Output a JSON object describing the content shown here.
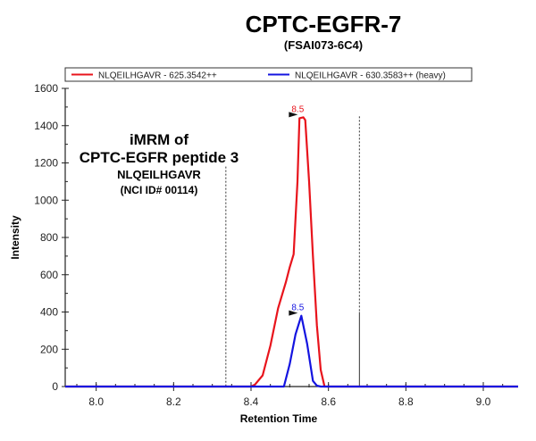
{
  "chart_data": {
    "type": "line",
    "title": "CPTC-EGFR-7",
    "subtitle": "(FSAI073-6C4)",
    "xlabel": "Retention Time",
    "ylabel": "Intensity",
    "xlim": [
      7.92,
      9.09
    ],
    "ylim": [
      0,
      1600
    ],
    "xticks": [
      "8.0",
      "8.2",
      "8.4",
      "8.6",
      "8.8",
      "9.0"
    ],
    "yticks": [
      "0",
      "200",
      "400",
      "600",
      "800",
      "1000",
      "1200",
      "1400",
      "1600"
    ],
    "legend_position": "top",
    "grid": false,
    "annotation": [
      "iMRM of",
      "CPTC-EGFR peptide 3",
      "NLQEILHGAVR",
      "(NCI ID# 00114)"
    ],
    "integration_bounds": [
      8.335,
      8.68
    ],
    "series": [
      {
        "name": "NLQEILHGAVR - 625.3542++",
        "color": "#e8141c",
        "peak_label": "8.5",
        "peak_x": 8.53,
        "peak_y": 1445,
        "x": [
          7.92,
          8.4,
          8.41,
          8.43,
          8.45,
          8.47,
          8.49,
          8.5,
          8.51,
          8.52,
          8.525,
          8.535,
          8.54,
          8.55,
          8.56,
          8.57,
          8.58,
          8.59,
          9.09
        ],
        "y": [
          0,
          0,
          10,
          60,
          220,
          420,
          560,
          640,
          710,
          1100,
          1440,
          1445,
          1430,
          1100,
          700,
          330,
          90,
          0,
          0
        ]
      },
      {
        "name": "NLQEILHGAVR - 630.3583++ (heavy)",
        "color": "#1414e0",
        "peak_label": "8.5",
        "peak_x": 8.53,
        "peak_y": 380,
        "x": [
          7.92,
          8.485,
          8.5,
          8.515,
          8.53,
          8.545,
          8.56,
          8.57,
          8.58,
          9.09
        ],
        "y": [
          0,
          0,
          120,
          280,
          380,
          230,
          30,
          5,
          0,
          0
        ]
      }
    ]
  }
}
